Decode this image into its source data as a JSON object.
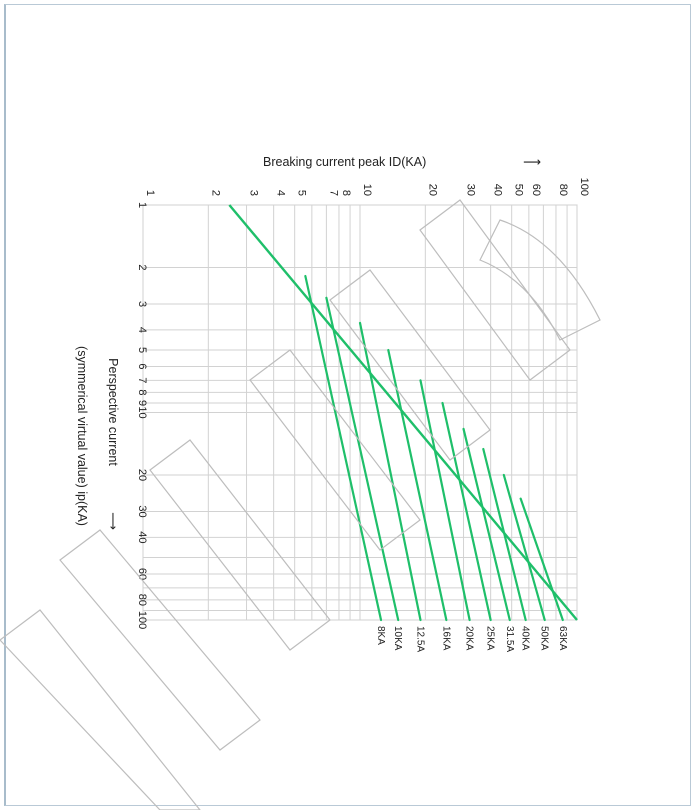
{
  "chart_data": {
    "type": "line",
    "title": "",
    "ylabel": "Breaking current peak ID(KA)",
    "ylabel_arrow": "⟶",
    "xlabel": "Perspective current",
    "xlabel_line2": "(symmerical virtual value) ip(KA)",
    "xlabel_arrow": "⟶",
    "x_scale": "log",
    "y_scale": "log",
    "xlim": [
      1,
      100
    ],
    "ylim": [
      1,
      100
    ],
    "x_tick_labels": [
      {
        "v": 1,
        "t": "1"
      },
      {
        "v": 2,
        "t": "2"
      },
      {
        "v": 3,
        "t": "3"
      },
      {
        "v": 4,
        "t": "4"
      },
      {
        "v": 5,
        "t": "5"
      },
      {
        "v": 6,
        "t": "6"
      },
      {
        "v": 7,
        "t": "7"
      },
      {
        "v": 8,
        "t": "8"
      },
      {
        "v": 9,
        "t": "9"
      },
      {
        "v": 10,
        "t": "10"
      },
      {
        "v": 20,
        "t": "20"
      },
      {
        "v": 30,
        "t": "30"
      },
      {
        "v": 40,
        "t": "40"
      },
      {
        "v": 60,
        "t": "60"
      },
      {
        "v": 80,
        "t": "80"
      },
      {
        "v": 100,
        "t": "100"
      }
    ],
    "y_tick_labels": [
      {
        "v": 1,
        "t": "1"
      },
      {
        "v": 2,
        "t": "2"
      },
      {
        "v": 3,
        "t": "3"
      },
      {
        "v": 4,
        "t": "4"
      },
      {
        "v": 5,
        "t": "5"
      },
      {
        "v": 7,
        "t": "7"
      },
      {
        "v": 8,
        "t": "8"
      },
      {
        "v": 10,
        "t": "10"
      },
      {
        "v": 20,
        "t": "20"
      },
      {
        "v": 30,
        "t": "30"
      },
      {
        "v": 40,
        "t": "40"
      },
      {
        "v": 50,
        "t": "50"
      },
      {
        "v": 60,
        "t": "60"
      },
      {
        "v": 80,
        "t": "80"
      },
      {
        "v": 100,
        "t": "100"
      }
    ],
    "grid": true,
    "rotation": "chart rotated 90 degrees clockwise on the page",
    "envelope": {
      "x": [
        1,
        100
      ],
      "y": [
        2.5,
        100
      ]
    },
    "series": [
      {
        "name": "63KA",
        "start": [
          26,
          55
        ],
        "end": [
          100,
          86
        ]
      },
      {
        "name": "50KA",
        "start": [
          20,
          46
        ],
        "end": [
          100,
          71
        ]
      },
      {
        "name": "40KA",
        "start": [
          15,
          37
        ],
        "end": [
          100,
          58
        ]
      },
      {
        "name": "31.5A",
        "start": [
          12,
          30
        ],
        "end": [
          100,
          49
        ]
      },
      {
        "name": "25KA",
        "start": [
          9,
          24
        ],
        "end": [
          100,
          40
        ]
      },
      {
        "name": "20KA",
        "start": [
          7,
          19
        ],
        "end": [
          100,
          32
        ]
      },
      {
        "name": "16KA",
        "start": [
          5,
          13.5
        ],
        "end": [
          100,
          25
        ]
      },
      {
        "name": "12.5A",
        "start": [
          3.7,
          10
        ],
        "end": [
          100,
          19
        ]
      },
      {
        "name": "10KA",
        "start": [
          2.8,
          7
        ],
        "end": [
          100,
          15
        ]
      },
      {
        "name": "8KA",
        "start": [
          2.2,
          5.6
        ],
        "end": [
          100,
          12.5
        ]
      }
    ],
    "line_color": "#1fbf6a"
  }
}
